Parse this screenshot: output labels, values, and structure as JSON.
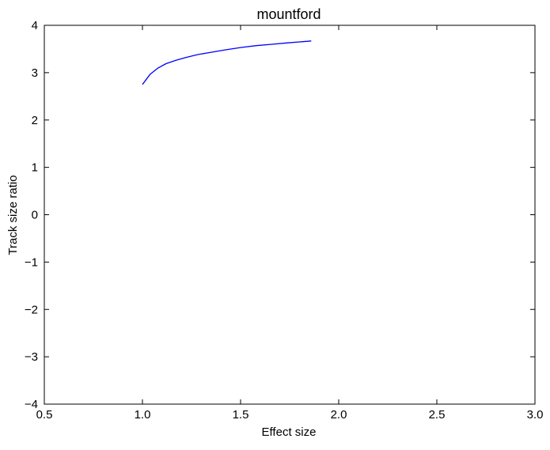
{
  "chart_data": {
    "type": "line",
    "title": "mountford",
    "xlabel": "Effect size",
    "ylabel": "Track size ratio",
    "xlim": [
      0.5,
      3.0
    ],
    "ylim": [
      -4,
      4
    ],
    "xticks": [
      0.5,
      1.0,
      1.5,
      2.0,
      2.5,
      3.0
    ],
    "xtick_labels": [
      "0.5",
      "1.0",
      "1.5",
      "2.0",
      "2.5",
      "3.0"
    ],
    "yticks": [
      -4,
      -3,
      -2,
      -1,
      0,
      1,
      2,
      3,
      4
    ],
    "ytick_labels": [
      "−4",
      "−3",
      "−2",
      "−1",
      "0",
      "1",
      "2",
      "3",
      "4"
    ],
    "grid": false,
    "series": [
      {
        "color": "#0000ff",
        "x": [
          1.0,
          1.04,
          1.08,
          1.12,
          1.17,
          1.22,
          1.28,
          1.35,
          1.42,
          1.5,
          1.58,
          1.66,
          1.74,
          1.8,
          1.86
        ],
        "y": [
          2.75,
          2.97,
          3.1,
          3.19,
          3.26,
          3.32,
          3.38,
          3.43,
          3.48,
          3.53,
          3.57,
          3.6,
          3.63,
          3.65,
          3.67
        ]
      }
    ]
  }
}
